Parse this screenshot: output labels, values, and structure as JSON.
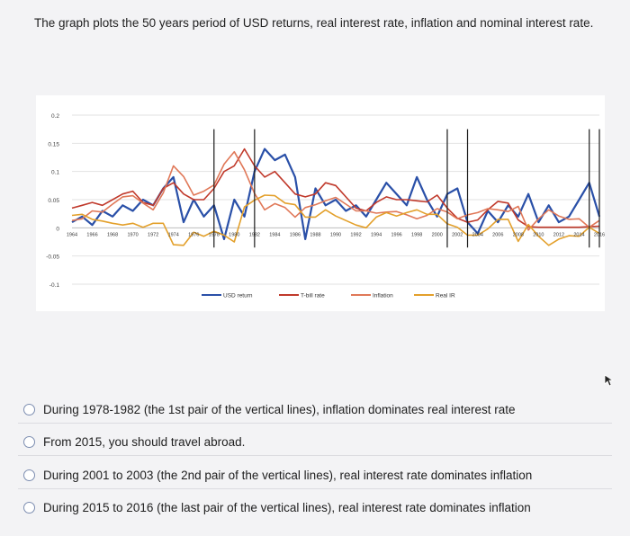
{
  "question": "The graph plots the 50 years period of USD returns, real interest rate, inflation and nominal interest rate.",
  "chart_data": {
    "type": "line",
    "x": [
      1964,
      1965,
      1966,
      1967,
      1968,
      1969,
      1970,
      1971,
      1972,
      1973,
      1974,
      1975,
      1976,
      1977,
      1978,
      1979,
      1980,
      1981,
      1982,
      1983,
      1984,
      1985,
      1986,
      1987,
      1988,
      1989,
      1990,
      1991,
      1992,
      1993,
      1994,
      1995,
      1996,
      1997,
      1998,
      1999,
      2000,
      2001,
      2002,
      2003,
      2004,
      2005,
      2006,
      2007,
      2008,
      2009,
      2010,
      2011,
      2012,
      2013,
      2014,
      2015,
      2016
    ],
    "x_tick_labels": [
      "1964",
      "1966",
      "1968",
      "1970",
      "1972",
      "1974",
      "1976",
      "1978",
      "1980",
      "1982",
      "1984",
      "1986",
      "1988",
      "1990",
      "1992",
      "1994",
      "1996",
      "1998",
      "2000",
      "2002",
      "2004",
      "2006",
      "2008",
      "2010",
      "2012",
      "2014",
      "2016"
    ],
    "y_tick_labels": [
      "0.2",
      "0.15",
      "0.1",
      "0.05",
      "0",
      "-0.05",
      "-0.1"
    ],
    "ylim": [
      -0.1,
      0.2
    ],
    "grid": true,
    "legend_position": "bottom",
    "vertical_lines_x": [
      1978,
      1982,
      2001,
      2003,
      2015,
      2016
    ],
    "series": [
      {
        "name": "USD return",
        "color": "#2a50a8",
        "values": [
          0.01,
          0.02,
          0.005,
          0.03,
          0.02,
          0.04,
          0.03,
          0.05,
          0.04,
          0.07,
          0.09,
          0.01,
          0.05,
          0.02,
          0.04,
          -0.02,
          0.05,
          0.02,
          0.1,
          0.14,
          0.12,
          0.13,
          0.09,
          -0.02,
          0.07,
          0.04,
          0.05,
          0.03,
          0.04,
          0.02,
          0.05,
          0.08,
          0.06,
          0.04,
          0.09,
          0.05,
          0.02,
          0.06,
          0.07,
          0.01,
          -0.01,
          0.03,
          0.01,
          0.04,
          0.02,
          0.06,
          0.01,
          0.04,
          0.01,
          0.02,
          0.05,
          0.08,
          0.02
        ]
      },
      {
        "name": "T-bill rate",
        "color": "#c0392b",
        "values": [
          0.035,
          0.04,
          0.045,
          0.04,
          0.05,
          0.06,
          0.065,
          0.045,
          0.04,
          0.07,
          0.08,
          0.06,
          0.05,
          0.05,
          0.07,
          0.1,
          0.11,
          0.14,
          0.11,
          0.09,
          0.1,
          0.08,
          0.06,
          0.055,
          0.06,
          0.08,
          0.075,
          0.055,
          0.035,
          0.03,
          0.045,
          0.055,
          0.05,
          0.05,
          0.048,
          0.046,
          0.058,
          0.035,
          0.017,
          0.01,
          0.014,
          0.032,
          0.047,
          0.044,
          0.014,
          0.002,
          0.001,
          0.001,
          0.001,
          0.001,
          0.001,
          0.002,
          0.003
        ]
      },
      {
        "name": "Inflation",
        "color": "#e07858",
        "values": [
          0.013,
          0.016,
          0.03,
          0.028,
          0.042,
          0.055,
          0.057,
          0.044,
          0.032,
          0.062,
          0.11,
          0.091,
          0.058,
          0.065,
          0.076,
          0.113,
          0.135,
          0.103,
          0.061,
          0.032,
          0.043,
          0.036,
          0.019,
          0.036,
          0.041,
          0.048,
          0.054,
          0.042,
          0.03,
          0.03,
          0.026,
          0.028,
          0.029,
          0.023,
          0.016,
          0.022,
          0.034,
          0.028,
          0.016,
          0.023,
          0.027,
          0.034,
          0.032,
          0.029,
          0.038,
          -0.004,
          0.016,
          0.032,
          0.021,
          0.015,
          0.016,
          0.001,
          0.013
        ]
      },
      {
        "name": "Real IR",
        "color": "#e3a02b",
        "values": [
          0.022,
          0.024,
          0.015,
          0.012,
          0.008,
          0.005,
          0.008,
          0.001,
          0.008,
          0.008,
          -0.03,
          -0.031,
          -0.008,
          -0.015,
          -0.006,
          -0.013,
          -0.025,
          0.037,
          0.049,
          0.058,
          0.057,
          0.044,
          0.041,
          0.019,
          0.019,
          0.032,
          0.021,
          0.013,
          0.005,
          0.0,
          0.019,
          0.027,
          0.021,
          0.027,
          0.032,
          0.024,
          0.024,
          0.007,
          0.001,
          -0.013,
          -0.013,
          -0.002,
          0.015,
          0.015,
          -0.024,
          0.006,
          -0.015,
          -0.031,
          -0.02,
          -0.014,
          -0.015,
          0.001,
          -0.01
        ]
      }
    ]
  },
  "options": [
    {
      "label": "During 1978-1982 (the 1st pair of the vertical lines), inflation dominates real interest rate"
    },
    {
      "label": "From 2015, you should travel abroad."
    },
    {
      "label": "During 2001 to 2003 (the 2nd pair of the vertical lines), real interest rate dominates inflation"
    },
    {
      "label": "During 2015 to 2016 (the last pair of the vertical lines), real interest rate dominates inflation"
    }
  ]
}
